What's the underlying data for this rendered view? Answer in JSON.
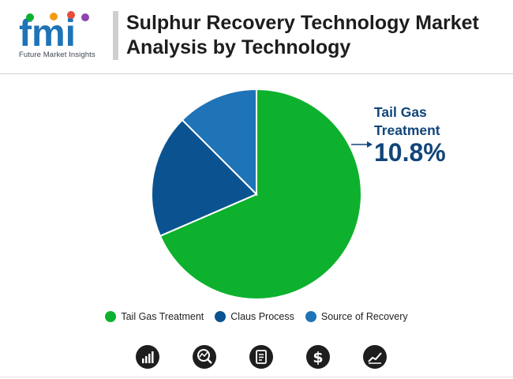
{
  "header": {
    "logo_text": "fmi",
    "logo_tagline": "Future Market Insights",
    "title": "Sulphur Recovery Technology Market Analysis by Technology"
  },
  "callout": {
    "label": "Tail Gas Treatment",
    "value": "10.8%"
  },
  "chart_data": {
    "type": "pie",
    "slices": [
      {
        "name": "Tail Gas Treatment",
        "value": 68.5,
        "color": "#0db12e"
      },
      {
        "name": "Claus Process",
        "value": 19.0,
        "color": "#0a5390"
      },
      {
        "name": "Source of Recovery",
        "value": 12.5,
        "color": "#1f73b7"
      }
    ],
    "legend": [
      "Tail Gas Treatment",
      "Claus Process",
      "Source of Recovery"
    ],
    "legend_position": "bottom"
  },
  "footer_icons": [
    "bar-chart-growth-icon",
    "chart-magnifier-icon",
    "document-list-icon",
    "dollar-icon",
    "line-chart-icon"
  ]
}
